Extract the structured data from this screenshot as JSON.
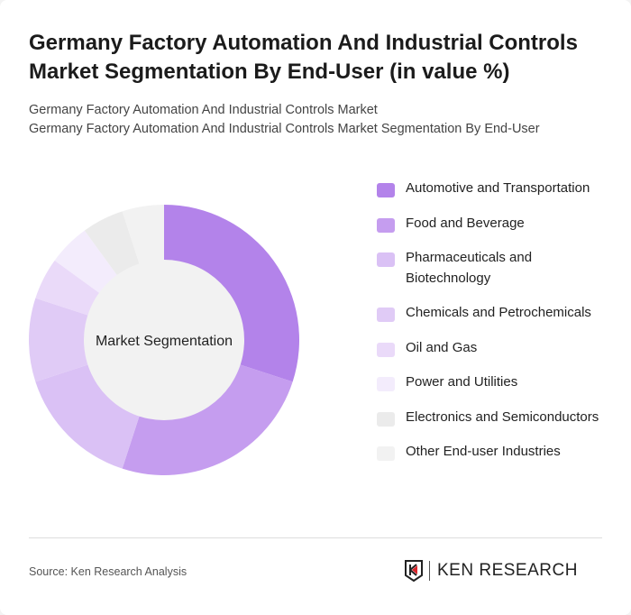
{
  "title": "Germany Factory Automation And Industrial Controls Market Segmentation By End-User (in value %)",
  "subtitle_1": "Germany Factory Automation And Industrial Controls Market",
  "subtitle_2": "Germany Factory Automation And Industrial Controls Market Segmentation By End-User",
  "source": "Source: Ken Research Analysis",
  "logo_text": "KEN RESEARCH",
  "chart_data": {
    "type": "pie",
    "variant": "donut",
    "center_label": "Market Segmentation",
    "legend_position": "right",
    "categories": [
      "Automotive and Transportation",
      "Food and Beverage",
      "Pharmaceuticals and Biotechnology",
      "Chemicals and Petrochemicals",
      "Oil and Gas",
      "Power and Utilities",
      "Electronics and Semiconductors",
      "Other End-user Industries"
    ],
    "values": [
      30,
      25,
      15,
      10,
      5,
      5,
      5,
      5
    ],
    "colors": [
      "#b383ea",
      "#c59def",
      "#dac1f5",
      "#e0cbf6",
      "#eadaf9",
      "#f3ecfc",
      "#ebebeb",
      "#f2f2f2"
    ]
  }
}
